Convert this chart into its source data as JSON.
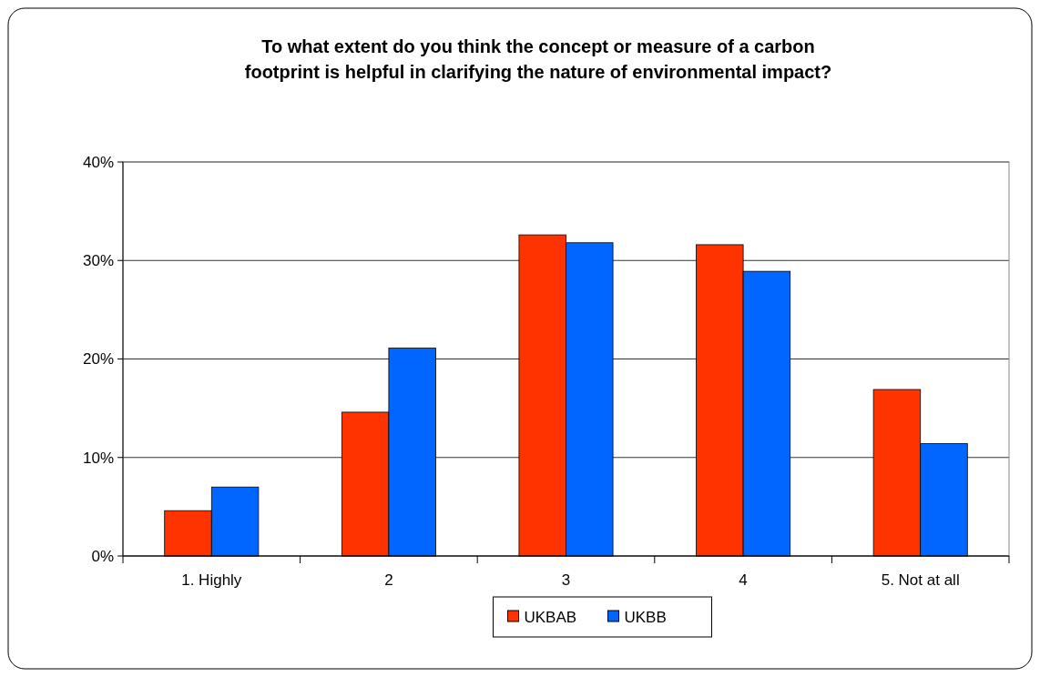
{
  "chart_data": {
    "type": "bar",
    "title": "To what extent do you think the concept or measure of a carbon footprint is helpful in clarifying the nature of environmental impact?",
    "categories": [
      "1. Highly",
      "2",
      "3",
      "4",
      "5. Not at all"
    ],
    "series": [
      {
        "name": "UKBAB",
        "color": "#ff3300",
        "values": [
          4.6,
          14.6,
          32.6,
          31.6,
          16.9
        ]
      },
      {
        "name": "UKBB",
        "color": "#0066ff",
        "values": [
          7.0,
          21.1,
          31.8,
          28.9,
          11.4
        ]
      }
    ],
    "ylim": [
      0,
      40
    ],
    "yticks": [
      {
        "value": 0,
        "label": "0%"
      },
      {
        "value": 10,
        "label": "10%"
      },
      {
        "value": 20,
        "label": "20%"
      },
      {
        "value": 30,
        "label": "30%"
      },
      {
        "value": 40,
        "label": "40%"
      }
    ],
    "grid": "y",
    "legend": "bottom"
  }
}
